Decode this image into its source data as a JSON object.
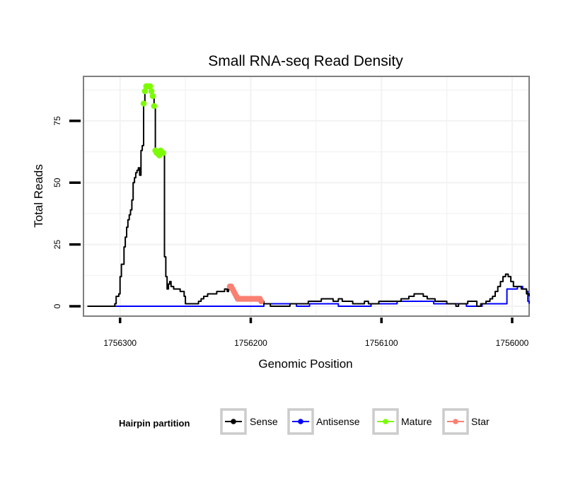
{
  "chart_data": {
    "type": "line",
    "title": "Small RNA-seq Read Density",
    "xlabel": "Genomic Position",
    "ylabel": "Total Reads",
    "x_reversed": true,
    "xlim": [
      1756328,
      1755987
    ],
    "ylim": [
      -4,
      93
    ],
    "x_ticks": [
      1756300,
      1756200,
      1756100,
      1756000
    ],
    "x_tick_labels": [
      "1756300",
      "1756200",
      "1756100",
      "1756000"
    ],
    "y_ticks": [
      0,
      25,
      50,
      75
    ],
    "y_tick_labels": [
      "0",
      "25",
      "50",
      "75"
    ],
    "grid": true,
    "legend": {
      "title": "Hairpin partition",
      "position": "bottom",
      "entries": [
        {
          "label": "Sense",
          "color": "#000000"
        },
        {
          "label": "Antisense",
          "color": "#0000ff"
        },
        {
          "label": "Mature",
          "color": "#7cfc00"
        },
        {
          "label": "Star",
          "color": "#fa8072"
        }
      ]
    },
    "series": [
      {
        "name": "Sense",
        "color": "#000000",
        "style": "step-line",
        "points": [
          [
            1756325,
            0
          ],
          [
            1756306,
            0
          ],
          [
            1756304,
            1
          ],
          [
            1756303,
            4
          ],
          [
            1756301,
            5
          ],
          [
            1756300,
            12
          ],
          [
            1756299,
            17
          ],
          [
            1756297,
            24
          ],
          [
            1756296,
            28
          ],
          [
            1756295,
            32
          ],
          [
            1756294,
            35
          ],
          [
            1756293,
            37
          ],
          [
            1756292,
            39
          ],
          [
            1756291,
            43
          ],
          [
            1756290,
            50
          ],
          [
            1756289,
            52
          ],
          [
            1756288,
            54
          ],
          [
            1756287,
            55
          ],
          [
            1756286,
            56
          ],
          [
            1756285,
            53
          ],
          [
            1756284,
            63
          ],
          [
            1756283,
            65
          ],
          [
            1756282,
            82
          ],
          [
            1756281,
            87
          ],
          [
            1756280,
            89
          ],
          [
            1756279,
            89
          ],
          [
            1756278,
            89
          ],
          [
            1756277,
            89
          ],
          [
            1756276,
            87
          ],
          [
            1756275,
            85
          ],
          [
            1756274,
            81
          ],
          [
            1756273,
            63
          ],
          [
            1756272,
            62
          ],
          [
            1756271,
            62
          ],
          [
            1756270,
            61
          ],
          [
            1756269,
            63
          ],
          [
            1756268,
            62
          ],
          [
            1756267,
            62
          ],
          [
            1756266,
            20
          ],
          [
            1756265,
            12
          ],
          [
            1756264,
            7
          ],
          [
            1756263,
            9
          ],
          [
            1756262,
            10
          ],
          [
            1756261,
            8
          ],
          [
            1756259,
            7
          ],
          [
            1756256,
            7
          ],
          [
            1756254,
            6
          ],
          [
            1756252,
            6
          ],
          [
            1756251,
            4
          ],
          [
            1756250,
            1
          ],
          [
            1756246,
            1
          ],
          [
            1756242,
            1
          ],
          [
            1756240,
            2
          ],
          [
            1756238,
            3
          ],
          [
            1756236,
            4
          ],
          [
            1756233,
            5
          ],
          [
            1756228,
            5
          ],
          [
            1756226,
            6
          ],
          [
            1756222,
            6
          ],
          [
            1756220,
            7
          ],
          [
            1756218,
            6
          ],
          [
            1756217,
            7
          ],
          [
            1756216,
            8
          ],
          [
            1756215,
            8
          ],
          [
            1756214,
            7
          ],
          [
            1756213,
            6
          ],
          [
            1756212,
            5
          ],
          [
            1756211,
            4
          ],
          [
            1756210,
            3
          ],
          [
            1756208,
            3
          ],
          [
            1756205,
            3
          ],
          [
            1756202,
            3
          ],
          [
            1756200,
            3
          ],
          [
            1756198,
            3
          ],
          [
            1756196,
            3
          ],
          [
            1756194,
            3
          ],
          [
            1756192,
            2
          ],
          [
            1756190,
            1
          ],
          [
            1756185,
            0
          ],
          [
            1756180,
            0
          ],
          [
            1756176,
            0
          ],
          [
            1756172,
            0
          ],
          [
            1756170,
            1
          ],
          [
            1756168,
            1
          ],
          [
            1756165,
            1
          ],
          [
            1756160,
            1
          ],
          [
            1756156,
            2
          ],
          [
            1756150,
            2
          ],
          [
            1756146,
            3
          ],
          [
            1756140,
            3
          ],
          [
            1756137,
            2
          ],
          [
            1756133,
            3
          ],
          [
            1756130,
            2
          ],
          [
            1756125,
            2
          ],
          [
            1756122,
            1
          ],
          [
            1756117,
            1
          ],
          [
            1756113,
            2
          ],
          [
            1756110,
            1
          ],
          [
            1756106,
            1
          ],
          [
            1756102,
            2
          ],
          [
            1756095,
            2
          ],
          [
            1756090,
            2
          ],
          [
            1756085,
            3
          ],
          [
            1756082,
            3
          ],
          [
            1756079,
            4
          ],
          [
            1756077,
            4
          ],
          [
            1756075,
            5
          ],
          [
            1756071,
            5
          ],
          [
            1756068,
            4
          ],
          [
            1756065,
            3
          ],
          [
            1756062,
            3
          ],
          [
            1756059,
            2
          ],
          [
            1756055,
            2
          ],
          [
            1756050,
            1
          ],
          [
            1756046,
            1
          ],
          [
            1756043,
            0
          ],
          [
            1756041,
            1
          ],
          [
            1756037,
            1
          ],
          [
            1756034,
            2
          ],
          [
            1756030,
            2
          ],
          [
            1756027,
            0
          ],
          [
            1756024,
            1
          ],
          [
            1756020,
            2
          ],
          [
            1756017,
            3
          ],
          [
            1756015,
            4
          ],
          [
            1756013,
            6
          ],
          [
            1756011,
            8
          ],
          [
            1756009,
            10
          ],
          [
            1756007,
            12
          ],
          [
            1756005,
            13
          ],
          [
            1756003,
            12
          ],
          [
            1756001,
            10
          ],
          [
            1755999,
            8
          ],
          [
            1755995,
            8
          ],
          [
            1755993,
            7
          ],
          [
            1755991,
            7
          ],
          [
            1755989,
            5
          ],
          [
            1755987,
            4
          ]
        ]
      },
      {
        "name": "Antisense",
        "color": "#0000ff",
        "style": "step-line",
        "points": [
          [
            1756306,
            0
          ],
          [
            1756200,
            0
          ],
          [
            1756192,
            0
          ],
          [
            1756190,
            1
          ],
          [
            1756170,
            1
          ],
          [
            1756165,
            0
          ],
          [
            1756160,
            0
          ],
          [
            1756155,
            1
          ],
          [
            1756140,
            1
          ],
          [
            1756133,
            0
          ],
          [
            1756125,
            0
          ],
          [
            1756120,
            0
          ],
          [
            1756110,
            0
          ],
          [
            1756108,
            1
          ],
          [
            1756090,
            1
          ],
          [
            1756088,
            2
          ],
          [
            1756065,
            2
          ],
          [
            1756060,
            1
          ],
          [
            1756055,
            1
          ],
          [
            1756040,
            1
          ],
          [
            1756035,
            0
          ],
          [
            1756025,
            0
          ],
          [
            1756023,
            1
          ],
          [
            1756015,
            1
          ],
          [
            1756005,
            1
          ],
          [
            1756004,
            7
          ],
          [
            1756000,
            7
          ],
          [
            1755996,
            8
          ],
          [
            1755992,
            7
          ],
          [
            1755989,
            6
          ],
          [
            1755988,
            2
          ],
          [
            1755987,
            1
          ]
        ]
      },
      {
        "name": "Mature",
        "color": "#7cfc00",
        "style": "points",
        "points": [
          [
            1756282,
            82
          ],
          [
            1756281,
            87
          ],
          [
            1756280,
            89
          ],
          [
            1756279,
            89
          ],
          [
            1756278,
            89
          ],
          [
            1756277,
            89
          ],
          [
            1756276,
            87
          ],
          [
            1756275,
            85
          ],
          [
            1756274,
            81
          ],
          [
            1756273,
            63
          ],
          [
            1756272,
            62
          ],
          [
            1756271,
            62
          ],
          [
            1756270,
            61
          ],
          [
            1756269,
            63
          ],
          [
            1756268,
            62
          ],
          [
            1756267,
            62
          ]
        ]
      },
      {
        "name": "Star",
        "color": "#fa8072",
        "style": "points",
        "points": [
          [
            1756216,
            8
          ],
          [
            1756215,
            8
          ],
          [
            1756214,
            7
          ],
          [
            1756213,
            6
          ],
          [
            1756212,
            5
          ],
          [
            1756211,
            4
          ],
          [
            1756210,
            3
          ],
          [
            1756209,
            3
          ],
          [
            1756208,
            3
          ],
          [
            1756207,
            3
          ],
          [
            1756206,
            3
          ],
          [
            1756205,
            3
          ],
          [
            1756204,
            3
          ],
          [
            1756203,
            3
          ],
          [
            1756202,
            3
          ],
          [
            1756201,
            3
          ],
          [
            1756200,
            3
          ],
          [
            1756199,
            3
          ],
          [
            1756198,
            3
          ],
          [
            1756197,
            3
          ],
          [
            1756196,
            3
          ],
          [
            1756195,
            3
          ],
          [
            1756194,
            3
          ],
          [
            1756193,
            3
          ],
          [
            1756192,
            2
          ]
        ]
      }
    ]
  }
}
